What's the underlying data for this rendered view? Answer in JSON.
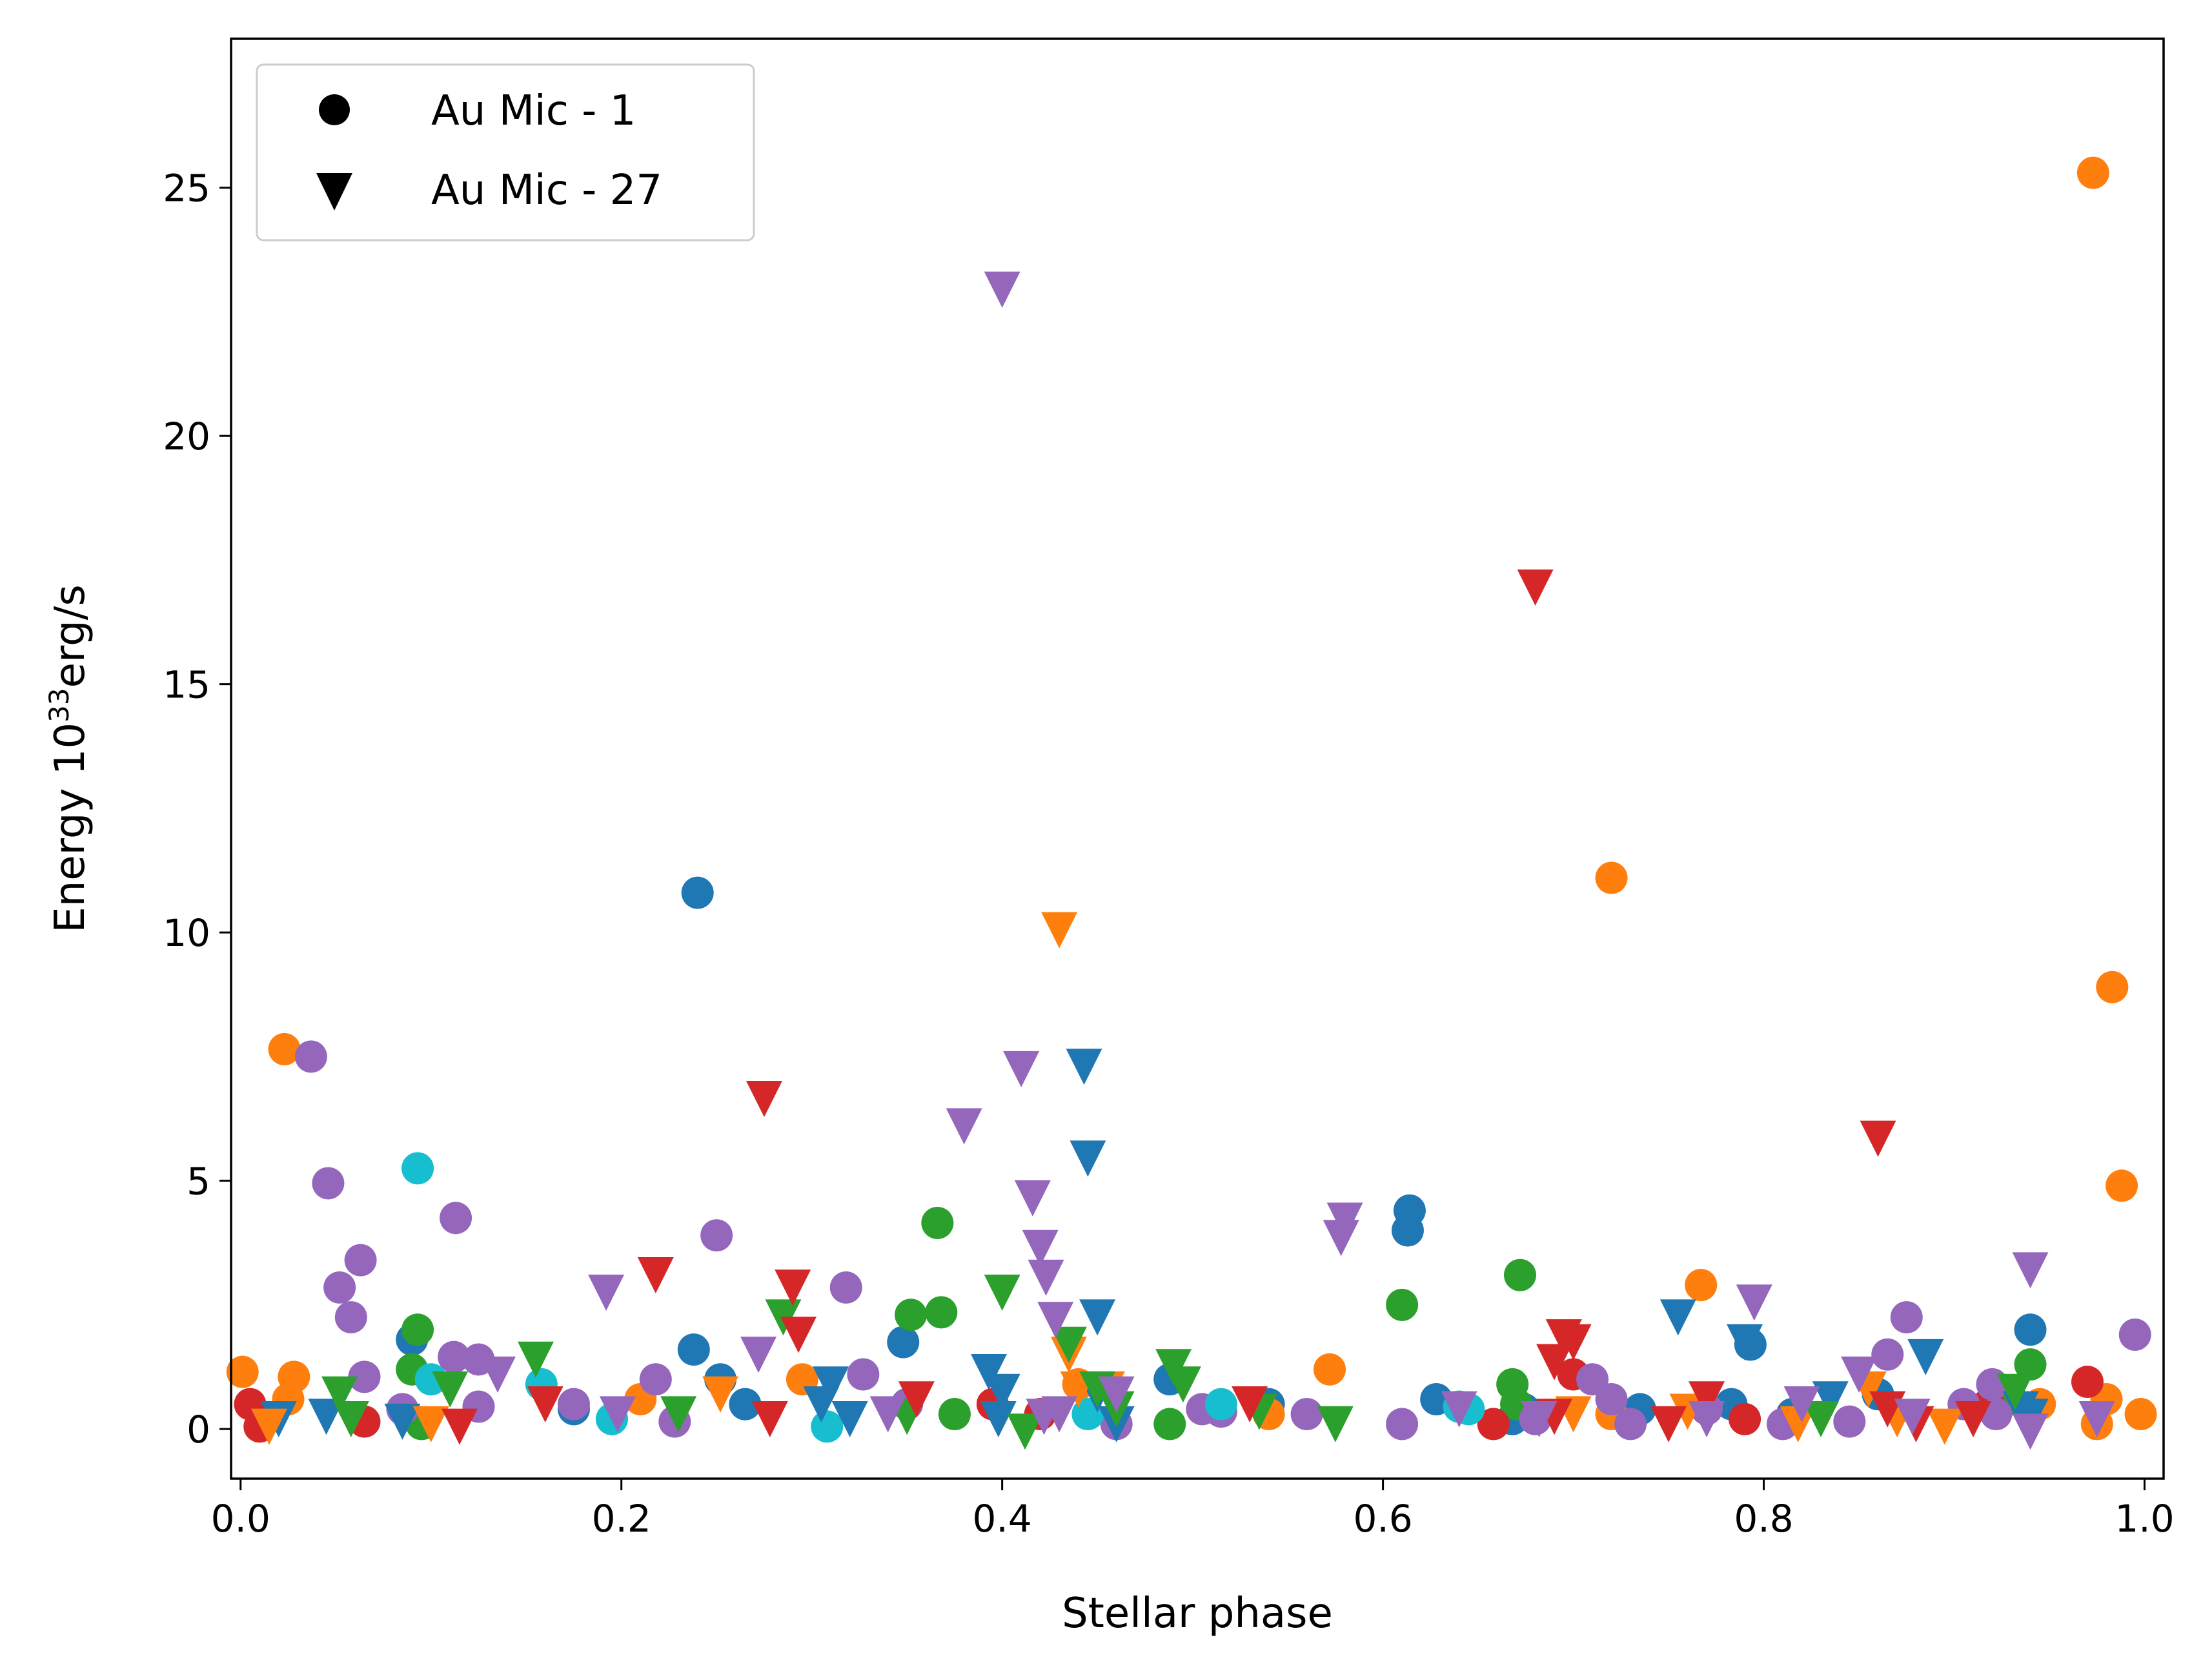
{
  "chart_data": {
    "type": "scatter",
    "xlabel": "Stellar phase",
    "ylabel_main": "Energy 10",
    "ylabel_sup": "33",
    "ylabel_unit": "erg/s",
    "xlim": [
      -0.005,
      1.01
    ],
    "ylim": [
      -1.0,
      28.0
    ],
    "xticks": [
      0.0,
      0.2,
      0.4,
      0.6,
      0.8,
      1.0
    ],
    "xtick_labels": [
      "0.0",
      "0.2",
      "0.4",
      "0.6",
      "0.8",
      "1.0"
    ],
    "yticks": [
      0,
      5,
      10,
      15,
      20,
      25
    ],
    "ytick_labels": [
      "0",
      "5",
      "10",
      "15",
      "20",
      "25"
    ],
    "legend": {
      "placement": "top-left",
      "entries": [
        {
          "label": "Au Mic - 1",
          "marker": "circle"
        },
        {
          "label": "Au Mic - 27",
          "marker": "triangle-down"
        }
      ]
    },
    "colors": {
      "blue": "#1f77b4",
      "orange": "#ff7f0e",
      "green": "#2ca02c",
      "red": "#d62728",
      "purple": "#9467bd",
      "cyan": "#17becf"
    },
    "series": [
      {
        "name": "Au Mic - 1 blue",
        "marker": "circle",
        "color": "blue",
        "points": [
          [
            0.09,
            1.8
          ],
          [
            0.24,
            10.8
          ],
          [
            0.238,
            1.6
          ],
          [
            0.252,
            1.0
          ],
          [
            0.348,
            1.75
          ],
          [
            0.614,
            4.4
          ],
          [
            0.613,
            4.0
          ],
          [
            0.628,
            0.6
          ],
          [
            0.668,
            0.2
          ],
          [
            0.674,
            0.4
          ],
          [
            0.735,
            0.4
          ],
          [
            0.783,
            0.5
          ],
          [
            0.793,
            1.7
          ],
          [
            0.94,
            2.0
          ],
          [
            0.815,
            0.3
          ],
          [
            0.265,
            0.5
          ],
          [
            0.488,
            1.0
          ],
          [
            0.54,
            0.5
          ],
          [
            0.175,
            0.4
          ],
          [
            0.86,
            0.7
          ]
        ]
      },
      {
        "name": "Au Mic - 1 orange",
        "marker": "circle",
        "color": "orange",
        "points": [
          [
            0.001,
            1.15
          ],
          [
            0.023,
            7.65
          ],
          [
            0.028,
            1.05
          ],
          [
            0.025,
            0.6
          ],
          [
            0.21,
            0.6
          ],
          [
            0.295,
            1.0
          ],
          [
            0.572,
            1.2
          ],
          [
            0.72,
            11.1
          ],
          [
            0.72,
            0.3
          ],
          [
            0.767,
            2.9
          ],
          [
            0.973,
            25.3
          ],
          [
            0.983,
            8.9
          ],
          [
            0.988,
            4.9
          ],
          [
            0.975,
            0.1
          ],
          [
            0.98,
            0.6
          ],
          [
            0.998,
            0.3
          ],
          [
            0.945,
            0.5
          ],
          [
            0.54,
            0.3
          ],
          [
            0.44,
            0.9
          ]
        ]
      },
      {
        "name": "Au Mic - 1 green",
        "marker": "circle",
        "color": "green",
        "points": [
          [
            0.093,
            2.0
          ],
          [
            0.09,
            1.2
          ],
          [
            0.095,
            0.1
          ],
          [
            0.352,
            2.3
          ],
          [
            0.366,
            4.15
          ],
          [
            0.368,
            2.35
          ],
          [
            0.375,
            0.3
          ],
          [
            0.488,
            0.1
          ],
          [
            0.61,
            2.5
          ],
          [
            0.668,
            0.9
          ],
          [
            0.672,
            3.1
          ],
          [
            0.67,
            0.5
          ],
          [
            0.94,
            1.3
          ],
          [
            0.93,
            0.6
          ]
        ]
      },
      {
        "name": "Au Mic - 1 red",
        "marker": "circle",
        "color": "red",
        "points": [
          [
            0.005,
            0.5
          ],
          [
            0.01,
            0.05
          ],
          [
            0.065,
            0.15
          ],
          [
            0.395,
            0.5
          ],
          [
            0.42,
            0.3
          ],
          [
            0.658,
            0.1
          ],
          [
            0.7,
            1.1
          ],
          [
            0.79,
            0.2
          ],
          [
            0.97,
            0.95
          ],
          [
            0.918,
            0.5
          ]
        ]
      },
      {
        "name": "Au Mic - 1 purple",
        "marker": "circle",
        "color": "purple",
        "points": [
          [
            0.037,
            7.5
          ],
          [
            0.046,
            4.95
          ],
          [
            0.052,
            2.85
          ],
          [
            0.058,
            2.25
          ],
          [
            0.063,
            3.4
          ],
          [
            0.065,
            1.05
          ],
          [
            0.085,
            0.4
          ],
          [
            0.112,
            1.45
          ],
          [
            0.113,
            4.25
          ],
          [
            0.125,
            1.4
          ],
          [
            0.125,
            0.45
          ],
          [
            0.175,
            0.5
          ],
          [
            0.218,
            1.0
          ],
          [
            0.228,
            0.15
          ],
          [
            0.25,
            3.9
          ],
          [
            0.318,
            2.85
          ],
          [
            0.327,
            1.1
          ],
          [
            0.505,
            0.4
          ],
          [
            0.515,
            0.35
          ],
          [
            0.56,
            0.3
          ],
          [
            0.61,
            0.1
          ],
          [
            0.68,
            0.2
          ],
          [
            0.71,
            1.0
          ],
          [
            0.72,
            0.6
          ],
          [
            0.73,
            0.1
          ],
          [
            0.77,
            0.4
          ],
          [
            0.81,
            0.1
          ],
          [
            0.845,
            0.15
          ],
          [
            0.865,
            1.5
          ],
          [
            0.875,
            2.25
          ],
          [
            0.905,
            0.5
          ],
          [
            0.92,
            0.9
          ],
          [
            0.922,
            0.3
          ],
          [
            0.995,
            1.9
          ],
          [
            0.46,
            0.1
          ],
          [
            0.35,
            0.5
          ]
        ]
      },
      {
        "name": "Au Mic - 1 cyan",
        "marker": "circle",
        "color": "cyan",
        "points": [
          [
            0.093,
            5.25
          ],
          [
            0.1,
            1.0
          ],
          [
            0.158,
            0.9
          ],
          [
            0.195,
            0.2
          ],
          [
            0.308,
            0.05
          ],
          [
            0.445,
            0.3
          ],
          [
            0.515,
            0.5
          ],
          [
            0.645,
            0.4
          ],
          [
            0.64,
            0.45
          ]
        ]
      },
      {
        "name": "Au Mic - 27 blue",
        "marker": "triangle-down",
        "color": "blue",
        "points": [
          [
            0.02,
            0.3
          ],
          [
            0.045,
            0.35
          ],
          [
            0.085,
            0.25
          ],
          [
            0.31,
            1.0
          ],
          [
            0.305,
            0.6
          ],
          [
            0.32,
            0.3
          ],
          [
            0.393,
            1.25
          ],
          [
            0.4,
            0.85
          ],
          [
            0.398,
            0.3
          ],
          [
            0.443,
            7.4
          ],
          [
            0.445,
            5.55
          ],
          [
            0.45,
            2.35
          ],
          [
            0.45,
            0.8
          ],
          [
            0.46,
            0.2
          ],
          [
            0.755,
            2.35
          ],
          [
            0.79,
            1.85
          ],
          [
            0.835,
            0.7
          ],
          [
            0.885,
            1.55
          ],
          [
            0.935,
            0.5
          ],
          [
            0.94,
            0.35
          ]
        ]
      },
      {
        "name": "Au Mic - 27 orange",
        "marker": "triangle-down",
        "color": "orange",
        "points": [
          [
            0.015,
            0.15
          ],
          [
            0.1,
            0.2
          ],
          [
            0.252,
            0.8
          ],
          [
            0.43,
            10.15
          ],
          [
            0.435,
            1.6
          ],
          [
            0.44,
            0.9
          ],
          [
            0.455,
            0.9
          ],
          [
            0.7,
            0.4
          ],
          [
            0.76,
            0.45
          ],
          [
            0.818,
            0.2
          ],
          [
            0.855,
            0.9
          ],
          [
            0.87,
            0.3
          ],
          [
            0.895,
            0.15
          ]
        ]
      },
      {
        "name": "Au Mic - 27 green",
        "marker": "triangle-down",
        "color": "green",
        "points": [
          [
            0.052,
            0.8
          ],
          [
            0.058,
            0.3
          ],
          [
            0.11,
            0.9
          ],
          [
            0.155,
            1.5
          ],
          [
            0.23,
            0.4
          ],
          [
            0.285,
            2.35
          ],
          [
            0.35,
            0.35
          ],
          [
            0.4,
            2.85
          ],
          [
            0.412,
            0.05
          ],
          [
            0.435,
            1.8
          ],
          [
            0.45,
            0.9
          ],
          [
            0.46,
            0.5
          ],
          [
            0.49,
            1.35
          ],
          [
            0.495,
            1.0
          ],
          [
            0.535,
            0.45
          ],
          [
            0.575,
            0.2
          ],
          [
            0.83,
            0.3
          ],
          [
            0.932,
            0.85
          ]
        ]
      },
      {
        "name": "Au Mic - 27 red",
        "marker": "triangle-down",
        "color": "red",
        "points": [
          [
            0.115,
            0.15
          ],
          [
            0.16,
            0.6
          ],
          [
            0.218,
            3.2
          ],
          [
            0.275,
            6.75
          ],
          [
            0.278,
            0.3
          ],
          [
            0.29,
            2.95
          ],
          [
            0.293,
            2.0
          ],
          [
            0.355,
            0.7
          ],
          [
            0.53,
            0.6
          ],
          [
            0.68,
            17.05
          ],
          [
            0.69,
            1.45
          ],
          [
            0.695,
            1.95
          ],
          [
            0.7,
            1.85
          ],
          [
            0.69,
            0.35
          ],
          [
            0.75,
            0.2
          ],
          [
            0.77,
            0.7
          ],
          [
            0.86,
            5.95
          ],
          [
            0.865,
            0.5
          ],
          [
            0.88,
            0.2
          ],
          [
            0.91,
            0.3
          ]
        ]
      },
      {
        "name": "Au Mic - 27 purple",
        "marker": "triangle-down",
        "color": "purple",
        "points": [
          [
            0.135,
            1.2
          ],
          [
            0.192,
            2.85
          ],
          [
            0.198,
            0.4
          ],
          [
            0.272,
            1.6
          ],
          [
            0.34,
            0.4
          ],
          [
            0.38,
            6.2
          ],
          [
            0.4,
            23.05
          ],
          [
            0.41,
            7.35
          ],
          [
            0.416,
            4.75
          ],
          [
            0.42,
            3.75
          ],
          [
            0.423,
            3.15
          ],
          [
            0.428,
            2.3
          ],
          [
            0.422,
            0.35
          ],
          [
            0.43,
            0.4
          ],
          [
            0.58,
            4.3
          ],
          [
            0.578,
            3.95
          ],
          [
            0.64,
            0.5
          ],
          [
            0.682,
            0.3
          ],
          [
            0.77,
            0.3
          ],
          [
            0.795,
            2.65
          ],
          [
            0.82,
            0.6
          ],
          [
            0.85,
            1.2
          ],
          [
            0.878,
            0.35
          ],
          [
            0.94,
            3.3
          ],
          [
            0.94,
            0.05
          ],
          [
            0.975,
            0.3
          ],
          [
            0.46,
            0.8
          ]
        ]
      }
    ]
  }
}
